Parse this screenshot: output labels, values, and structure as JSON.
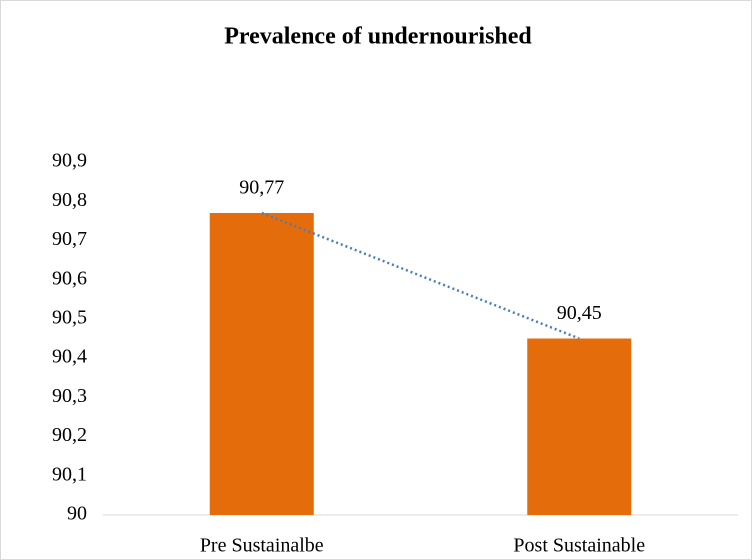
{
  "chart_data": {
    "type": "bar",
    "title": "Prevalence of undernourished",
    "categories": [
      "Pre Sustainalbe",
      "Post Sustainable"
    ],
    "values": [
      90.77,
      90.45
    ],
    "value_labels": [
      "90,77",
      "90,45"
    ],
    "color": "#e46c0a",
    "ylim": [
      90,
      90.9
    ],
    "yticks": [
      90,
      {
        "value": 90.1,
        "label": "90,1"
      },
      {
        "value": 90.2,
        "label": "90,2"
      },
      {
        "value": 90.3,
        "label": "90,3"
      },
      {
        "value": 90.4,
        "label": "90,4"
      },
      {
        "value": 90.5,
        "label": "90,5"
      },
      {
        "value": 90.6,
        "label": "90,6"
      },
      {
        "value": 90.7,
        "label": "90,7"
      },
      {
        "value": 90.8,
        "label": "90,8"
      },
      {
        "value": 90.9,
        "label": "90,9"
      }
    ],
    "grid": false,
    "trendline": {
      "color": "#4a7ebb",
      "style": "dotted"
    }
  }
}
